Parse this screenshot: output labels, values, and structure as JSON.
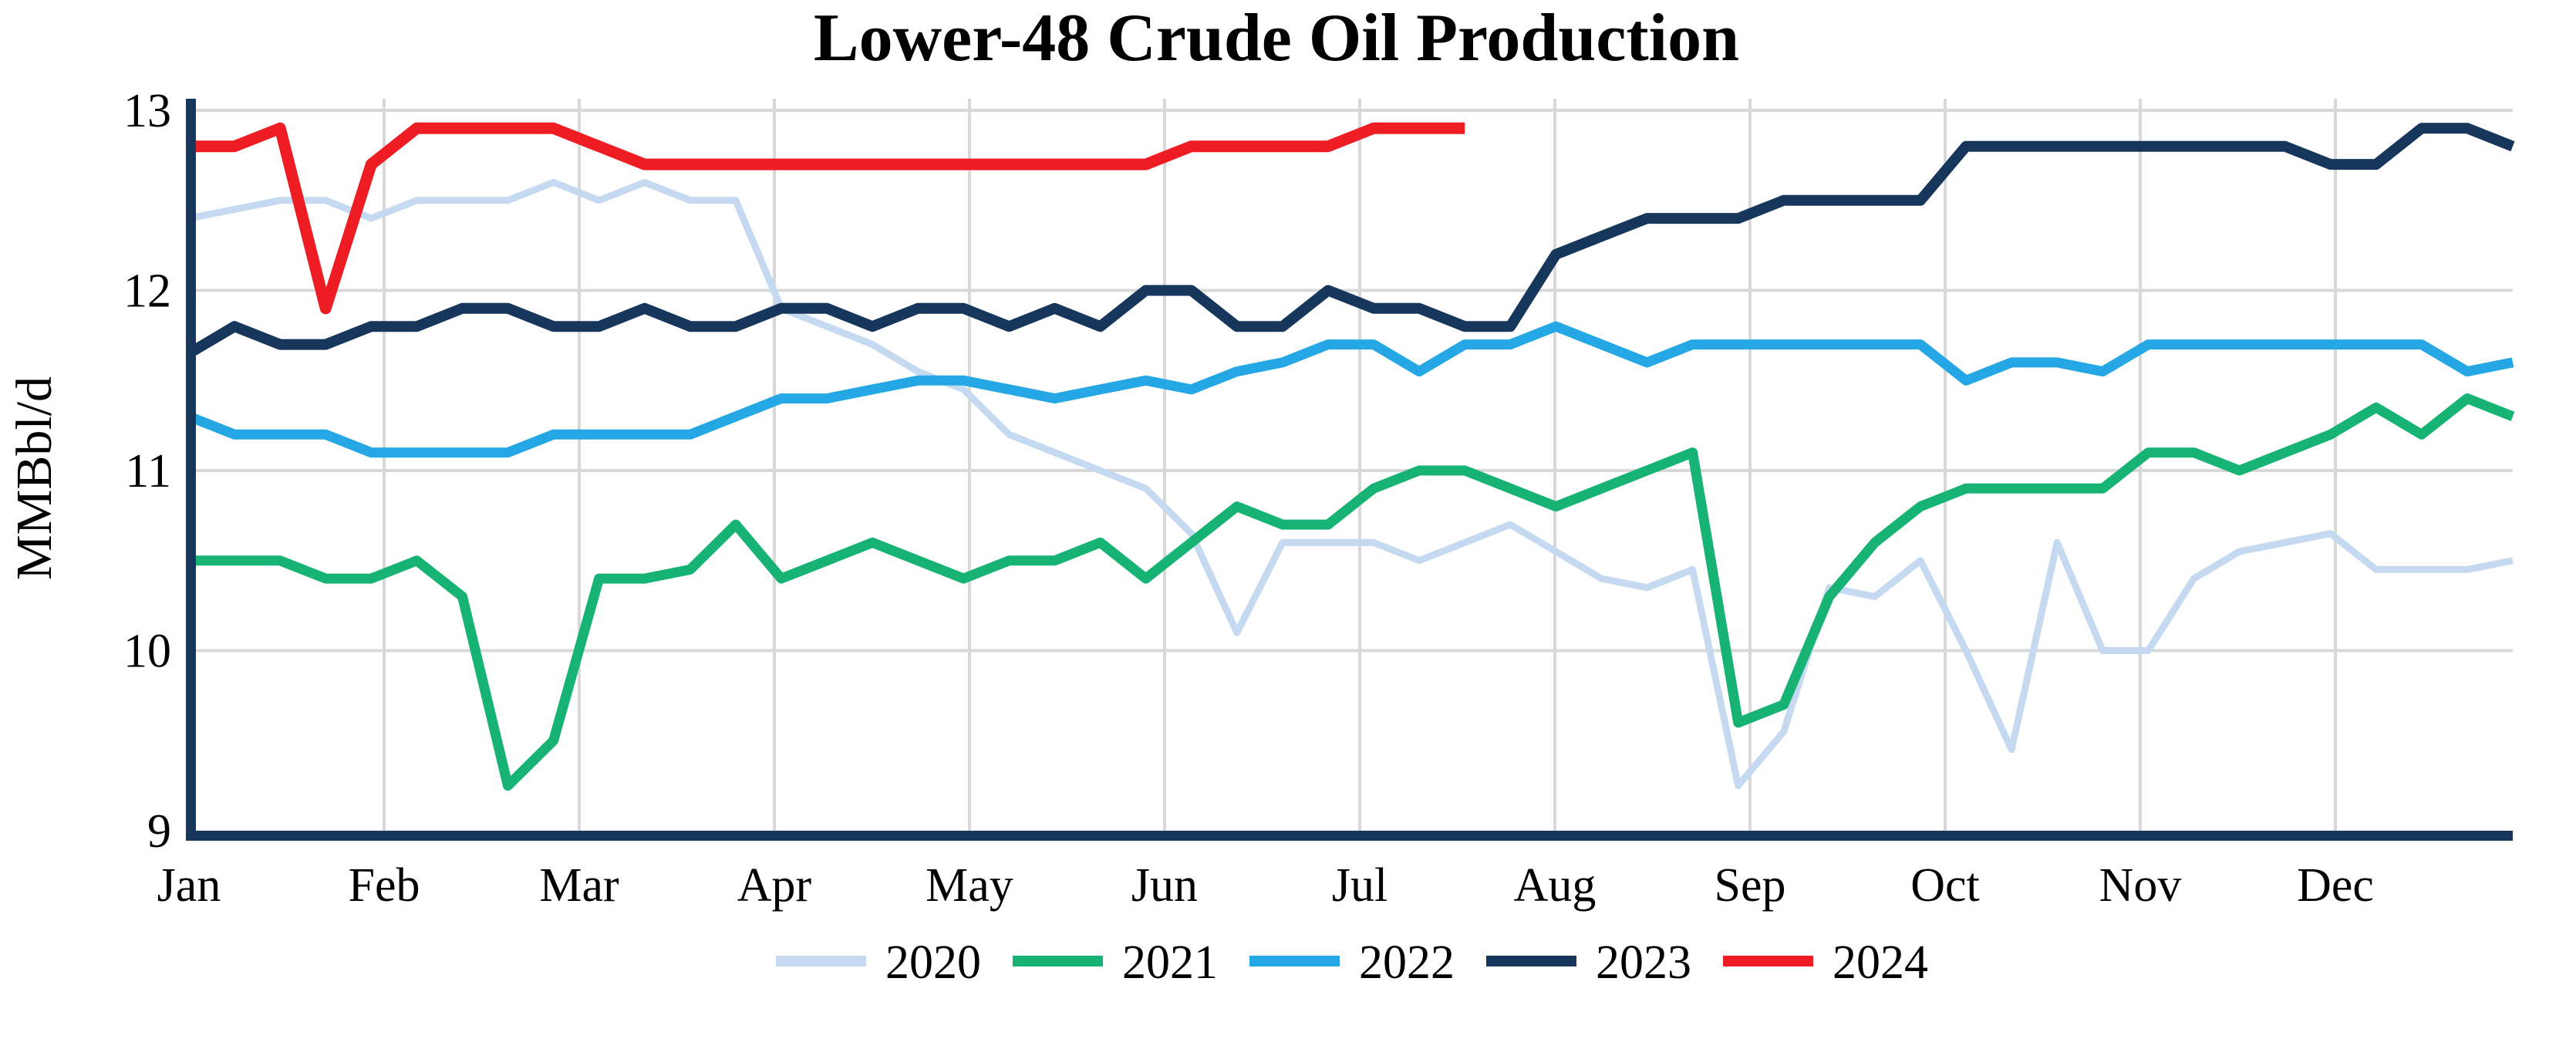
{
  "chart_data": {
    "type": "line",
    "title": "Lower-48 Crude Oil Production",
    "ylabel": "MMBbl/d",
    "ylim": [
      9,
      13
    ],
    "yticks": [
      9,
      10,
      11,
      12,
      13
    ],
    "categories": [
      "Jan",
      "Feb",
      "Mar",
      "Apr",
      "May",
      "Jun",
      "Jul",
      "Aug",
      "Sep",
      "Oct",
      "Nov",
      "Dec"
    ],
    "x_description": "weekly values spanning Jan-Dec; the 2024 series ends in late July",
    "grid": true,
    "legend_position": "bottom-center",
    "series": [
      {
        "name": "2020",
        "color": "#c5d9f1",
        "stroke_width": 9,
        "values": [
          12.4,
          12.45,
          12.5,
          12.5,
          12.4,
          12.5,
          12.5,
          12.5,
          12.6,
          12.5,
          12.6,
          12.5,
          12.5,
          11.9,
          11.8,
          11.7,
          11.55,
          11.45,
          11.2,
          11.1,
          11.0,
          10.9,
          10.65,
          10.1,
          10.6,
          10.6,
          10.6,
          10.5,
          10.6,
          10.7,
          10.55,
          10.4,
          10.35,
          10.45,
          9.25,
          9.55,
          10.35,
          10.3,
          10.5,
          10.0,
          9.45,
          10.6,
          10.0,
          10.0,
          10.4,
          10.55,
          10.6,
          10.65,
          10.45,
          10.45,
          10.45,
          10.5
        ]
      },
      {
        "name": "2021",
        "color": "#17b374",
        "stroke_width": 13,
        "values": [
          10.5,
          10.5,
          10.5,
          10.4,
          10.4,
          10.5,
          10.3,
          9.25,
          9.5,
          10.4,
          10.4,
          10.45,
          10.7,
          10.4,
          10.5,
          10.6,
          10.5,
          10.4,
          10.5,
          10.5,
          10.6,
          10.4,
          10.6,
          10.8,
          10.7,
          10.7,
          10.9,
          11.0,
          11.0,
          10.9,
          10.8,
          10.9,
          11.0,
          11.1,
          9.6,
          9.7,
          10.3,
          10.6,
          10.8,
          10.9,
          10.9,
          10.9,
          10.9,
          11.1,
          11.1,
          11.0,
          11.1,
          11.2,
          11.35,
          11.2,
          11.4,
          11.3
        ]
      },
      {
        "name": "2022",
        "color": "#24a7e4",
        "stroke_width": 13,
        "values": [
          11.3,
          11.2,
          11.2,
          11.2,
          11.1,
          11.1,
          11.1,
          11.1,
          11.2,
          11.2,
          11.2,
          11.2,
          11.3,
          11.4,
          11.4,
          11.45,
          11.5,
          11.5,
          11.45,
          11.4,
          11.45,
          11.5,
          11.45,
          11.55,
          11.6,
          11.7,
          11.7,
          11.55,
          11.7,
          11.7,
          11.8,
          11.7,
          11.6,
          11.7,
          11.7,
          11.7,
          11.7,
          11.7,
          11.7,
          11.5,
          11.6,
          11.6,
          11.55,
          11.7,
          11.7,
          11.7,
          11.7,
          11.7,
          11.7,
          11.7,
          11.55,
          11.6
        ]
      },
      {
        "name": "2023",
        "color": "#16365c",
        "stroke_width": 14,
        "values": [
          11.65,
          11.8,
          11.7,
          11.7,
          11.8,
          11.8,
          11.9,
          11.9,
          11.8,
          11.8,
          11.9,
          11.8,
          11.8,
          11.9,
          11.9,
          11.8,
          11.9,
          11.9,
          11.8,
          11.9,
          11.8,
          12.0,
          12.0,
          11.8,
          11.8,
          12.0,
          11.9,
          11.9,
          11.8,
          11.8,
          12.2,
          12.3,
          12.4,
          12.4,
          12.4,
          12.5,
          12.5,
          12.5,
          12.5,
          12.8,
          12.8,
          12.8,
          12.8,
          12.8,
          12.8,
          12.8,
          12.8,
          12.7,
          12.7,
          12.9,
          12.9,
          12.8
        ]
      },
      {
        "name": "2024",
        "color": "#ee1c23",
        "stroke_width": 15,
        "values": [
          12.8,
          12.8,
          12.9,
          11.9,
          12.7,
          12.9,
          12.9,
          12.9,
          12.9,
          12.8,
          12.7,
          12.7,
          12.7,
          12.7,
          12.7,
          12.7,
          12.7,
          12.7,
          12.7,
          12.7,
          12.7,
          12.7,
          12.8,
          12.8,
          12.8,
          12.8,
          12.9,
          12.9,
          12.9
        ]
      }
    ]
  },
  "colors": {
    "axis": "#16365c",
    "gridline": "#d8d8d8",
    "background": "#ffffff",
    "text": "#000000"
  }
}
